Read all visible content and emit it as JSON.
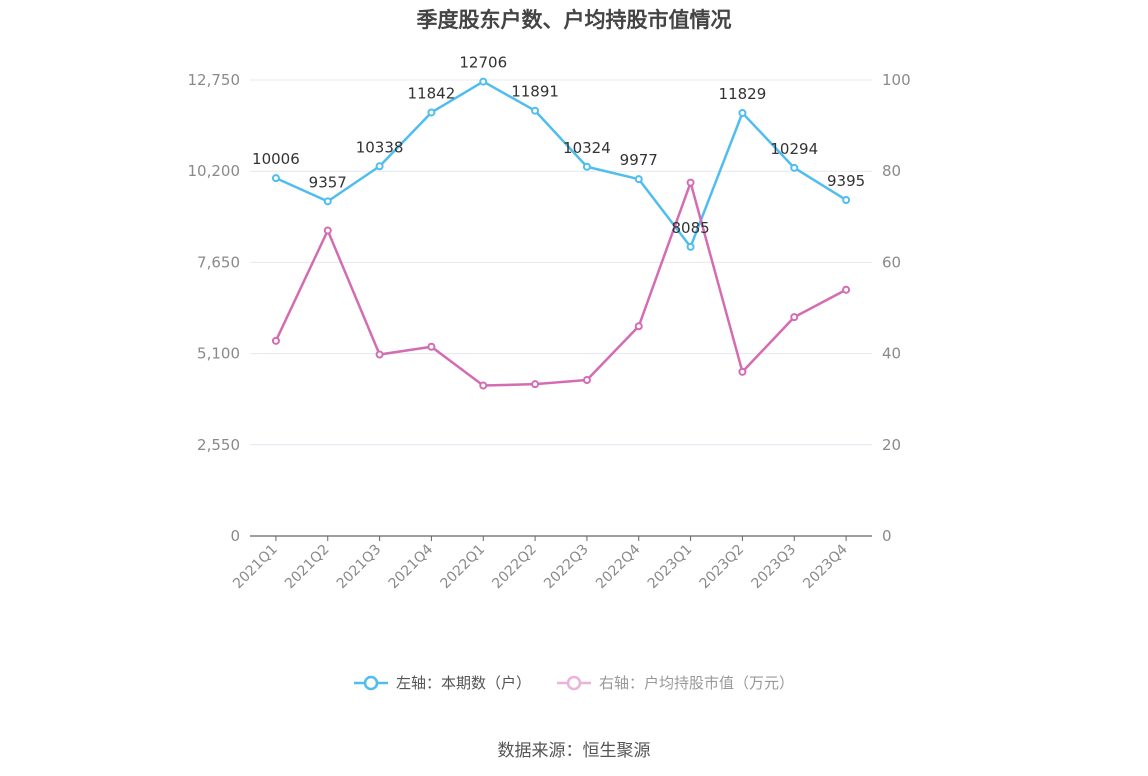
{
  "chart_data": {
    "type": "line",
    "title": "季度股东户数、户均持股市值情况",
    "categories": [
      "2021Q1",
      "2021Q2",
      "2021Q3",
      "2021Q4",
      "2022Q1",
      "2022Q2",
      "2022Q3",
      "2022Q4",
      "2023Q1",
      "2023Q2",
      "2023Q3",
      "2023Q4"
    ],
    "series": [
      {
        "name": "左轴：本期数（户）",
        "axis": "left",
        "color": "#4fbdf0",
        "values": [
          10006,
          9357,
          10338,
          11842,
          12706,
          11891,
          10324,
          9977,
          8085,
          11829,
          10294,
          9395
        ],
        "show_labels": true
      },
      {
        "name": "右轴：户均持股市值（万元）",
        "axis": "right",
        "color": "#d36cb3",
        "values": [
          42.8,
          67.0,
          39.8,
          41.5,
          33.0,
          33.3,
          34.2,
          46.0,
          77.5,
          36.0,
          48.0,
          54.0
        ],
        "show_labels": false
      }
    ],
    "y_left": {
      "min": 0,
      "max": 12750,
      "ticks": [
        0,
        2550,
        5100,
        7650,
        10200,
        12750
      ],
      "tick_labels": [
        "0",
        "2,550",
        "5,100",
        "7,650",
        "10,200",
        "12,750"
      ]
    },
    "y_right": {
      "min": 0,
      "max": 100,
      "ticks": [
        0,
        20,
        40,
        60,
        80,
        100
      ],
      "tick_labels": [
        "0",
        "20",
        "40",
        "60",
        "80",
        "100"
      ]
    },
    "grid": true,
    "legend_position": "bottom-center"
  },
  "legend": {
    "left_label": "左轴：本期数（户）",
    "right_label": "右轴：户均持股市值（万元）"
  },
  "source": "数据来源：恒生聚源"
}
